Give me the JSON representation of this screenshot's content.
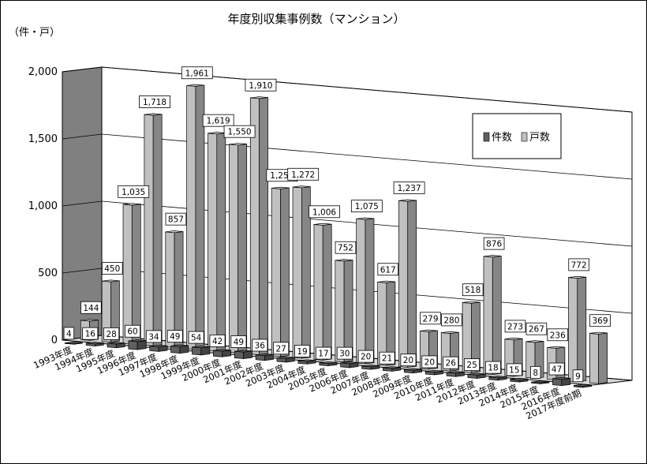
{
  "chart_data": {
    "type": "bar",
    "title": "年度別収集事例数（マンション）",
    "ylabel": "（件・戸）",
    "ylim": [
      0,
      2000
    ],
    "yticks": [
      "0",
      "500",
      "1,000",
      "1,500",
      "2,000"
    ],
    "grid": true,
    "legend_position": "right",
    "categories": [
      "1993年度",
      "1994年度",
      "1995年度",
      "1996年度",
      "1997年度",
      "1998年度",
      "1999年度",
      "2000年度",
      "2001年度",
      "2002年度",
      "2003年度",
      "2004年度",
      "2005年度",
      "2006年度",
      "2007年度",
      "2008年度",
      "2009年度",
      "2010年度",
      "2011年度",
      "2012年度",
      "2013年度",
      "2014年度",
      "2015年度",
      "2016年度",
      "2017年度前期"
    ],
    "series": [
      {
        "name": "件数",
        "color": "#5f5f5f",
        "values": [
          4,
          16,
          28,
          60,
          34,
          49,
          54,
          42,
          49,
          36,
          27,
          19,
          17,
          30,
          20,
          21,
          20,
          20,
          26,
          25,
          18,
          15,
          8,
          47,
          9
        ],
        "labels": [
          "4",
          "16",
          "28",
          "60",
          "34",
          "49",
          "54",
          "42",
          "49",
          "36",
          "27",
          "19",
          "17",
          "30",
          "20",
          "21",
          "20",
          "20",
          "26",
          "25",
          "18",
          "15",
          "8",
          "47",
          "9"
        ]
      },
      {
        "name": "戸数",
        "color": "#c0c0c0",
        "values": [
          144,
          450,
          1035,
          1718,
          857,
          1961,
          1619,
          1550,
          1910,
          1250,
          1272,
          1006,
          752,
          1075,
          617,
          1237,
          279,
          280,
          518,
          876,
          273,
          267,
          236,
          772,
          369
        ],
        "labels": [
          "144",
          "450",
          "1,035",
          "1,718",
          "857",
          "1,961",
          "1,619",
          "1,550",
          "1,910",
          "1,250",
          "1,272",
          "1,006",
          "752",
          "1,075",
          "617",
          "1,237",
          "279",
          "280",
          "518",
          "876",
          "273",
          "267",
          "236",
          "772",
          "369"
        ]
      }
    ]
  }
}
